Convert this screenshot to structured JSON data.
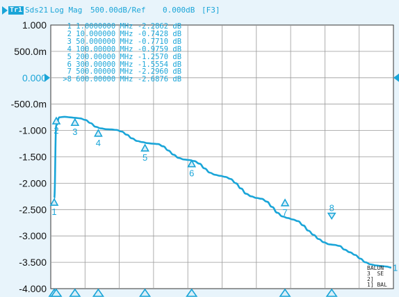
{
  "header": {
    "trace": "Tr1",
    "parameter": "Sds21",
    "format": "Log Mag",
    "scale": "500.00dB/Ref",
    "ref_value": "0.000dB",
    "flag": "[F3]"
  },
  "markers_table": [
    {
      "id": "1",
      "freq": "1.0000000 MHz",
      "value": "-2.2862 dB"
    },
    {
      "id": "2",
      "freq": "10.000000 MHz",
      "value": "-0.7428 dB"
    },
    {
      "id": "3",
      "freq": "50.000000 MHz",
      "value": "-0.7710 dB"
    },
    {
      "id": "4",
      "freq": "100.00000 MHz",
      "value": "-0.9759 dB"
    },
    {
      "id": "5",
      "freq": "200.00000 MHz",
      "value": "-1.2570 dB"
    },
    {
      "id": "6",
      "freq": "300.00000 MHz",
      "value": "-1.5554 dB"
    },
    {
      "id": "7",
      "freq": "500.00000 MHz",
      "value": "-2.2960 dB"
    },
    {
      "id": ">8",
      "freq": "600.00000 MHz",
      "value": "-2.6876 dB"
    }
  ],
  "balun_lines": [
    "BALUN",
    "3  SE",
    "2]",
    "1] BAL"
  ],
  "chart_data": {
    "type": "line",
    "title": "Sds21 Log Mag 500.00dB/Ref 0.000dB",
    "ylabel": "",
    "xlabel": "",
    "ylim": [
      -4.0,
      1.0
    ],
    "yticks": [
      "1.000",
      "500.0m",
      "0.000",
      "-500.0m",
      "-1.000",
      "-1.500",
      "-2.000",
      "-2.500",
      "-3.000",
      "-3.500",
      "-4.000"
    ],
    "ref_tick": "0.000",
    "xdivisions": 10,
    "grid": true,
    "trace_end_label": "1",
    "trace_color": "#1aa5d8",
    "series": [
      {
        "points": [
          [
            0.0,
            -2.2862
          ],
          [
            0.4,
            -0.9
          ],
          [
            1,
            -0.75
          ],
          [
            2,
            -0.74
          ],
          [
            3,
            -0.75
          ],
          [
            4,
            -0.76
          ],
          [
            5,
            -0.77
          ],
          [
            6,
            -0.8
          ],
          [
            7,
            -0.86
          ],
          [
            8,
            -0.93
          ],
          [
            9,
            -0.96
          ],
          [
            10,
            -0.9759
          ],
          [
            11,
            -0.98
          ],
          [
            12,
            -0.99
          ],
          [
            13,
            -1.02
          ],
          [
            14,
            -1.08
          ],
          [
            15,
            -1.15
          ],
          [
            16,
            -1.2
          ],
          [
            17,
            -1.22
          ],
          [
            18,
            -1.24
          ],
          [
            19,
            -1.25
          ],
          [
            20,
            -1.257
          ],
          [
            21,
            -1.3
          ],
          [
            22,
            -1.38
          ],
          [
            23,
            -1.46
          ],
          [
            24,
            -1.52
          ],
          [
            25,
            -1.55
          ],
          [
            26,
            -1.56
          ],
          [
            27,
            -1.58
          ],
          [
            28,
            -1.63
          ],
          [
            29,
            -1.72
          ],
          [
            30,
            -1.8
          ],
          [
            31,
            -1.84
          ],
          [
            32,
            -1.86
          ],
          [
            33,
            -1.88
          ],
          [
            34,
            -1.92
          ],
          [
            35,
            -2.0
          ],
          [
            36,
            -2.1
          ],
          [
            37,
            -2.2
          ],
          [
            38,
            -2.25
          ],
          [
            39,
            -2.28
          ],
          [
            40,
            -2.296
          ],
          [
            41,
            -2.35
          ],
          [
            42,
            -2.45
          ],
          [
            43,
            -2.56
          ],
          [
            44,
            -2.63
          ],
          [
            45,
            -2.66
          ],
          [
            46,
            -2.6876
          ],
          [
            47,
            -2.72
          ],
          [
            48,
            -2.8
          ],
          [
            49,
            -2.9
          ],
          [
            50,
            -2.98
          ],
          [
            51,
            -3.06
          ],
          [
            52,
            -3.12
          ],
          [
            53,
            -3.16
          ],
          [
            54,
            -3.17
          ],
          [
            55,
            -3.19
          ],
          [
            56,
            -3.26
          ],
          [
            57,
            -3.31
          ],
          [
            58,
            -3.36
          ],
          [
            59,
            -3.43
          ],
          [
            60,
            -3.5
          ],
          [
            61,
            -3.54
          ],
          [
            62,
            -3.56
          ],
          [
            63,
            -3.57
          ],
          [
            64,
            -3.58
          ],
          [
            65,
            -3.6
          ]
        ],
        "xrange": [
          0,
          65
        ]
      }
    ],
    "markers": [
      {
        "label": "1",
        "x": 0.0,
        "y": -2.2862,
        "dir": "up",
        "label_pos": "below"
      },
      {
        "label": "2",
        "x": 0.4,
        "y": -0.7428,
        "dir": "up",
        "label_pos": "below"
      },
      {
        "label": "3",
        "x": 4.0,
        "y": -0.771,
        "dir": "up",
        "label_pos": "below"
      },
      {
        "label": "4",
        "x": 8.5,
        "y": -0.9759,
        "dir": "up",
        "label_pos": "below"
      },
      {
        "label": "5",
        "x": 17.5,
        "y": -1.257,
        "dir": "up",
        "label_pos": "below"
      },
      {
        "label": "6",
        "x": 26.5,
        "y": -1.5554,
        "dir": "up",
        "label_pos": "below"
      },
      {
        "label": "7",
        "x": 44.5,
        "y": -2.296,
        "dir": "up",
        "label_pos": "below"
      },
      {
        "label": "8",
        "x": 53.5,
        "y": -2.6876,
        "dir": "down",
        "label_pos": "above"
      }
    ]
  }
}
